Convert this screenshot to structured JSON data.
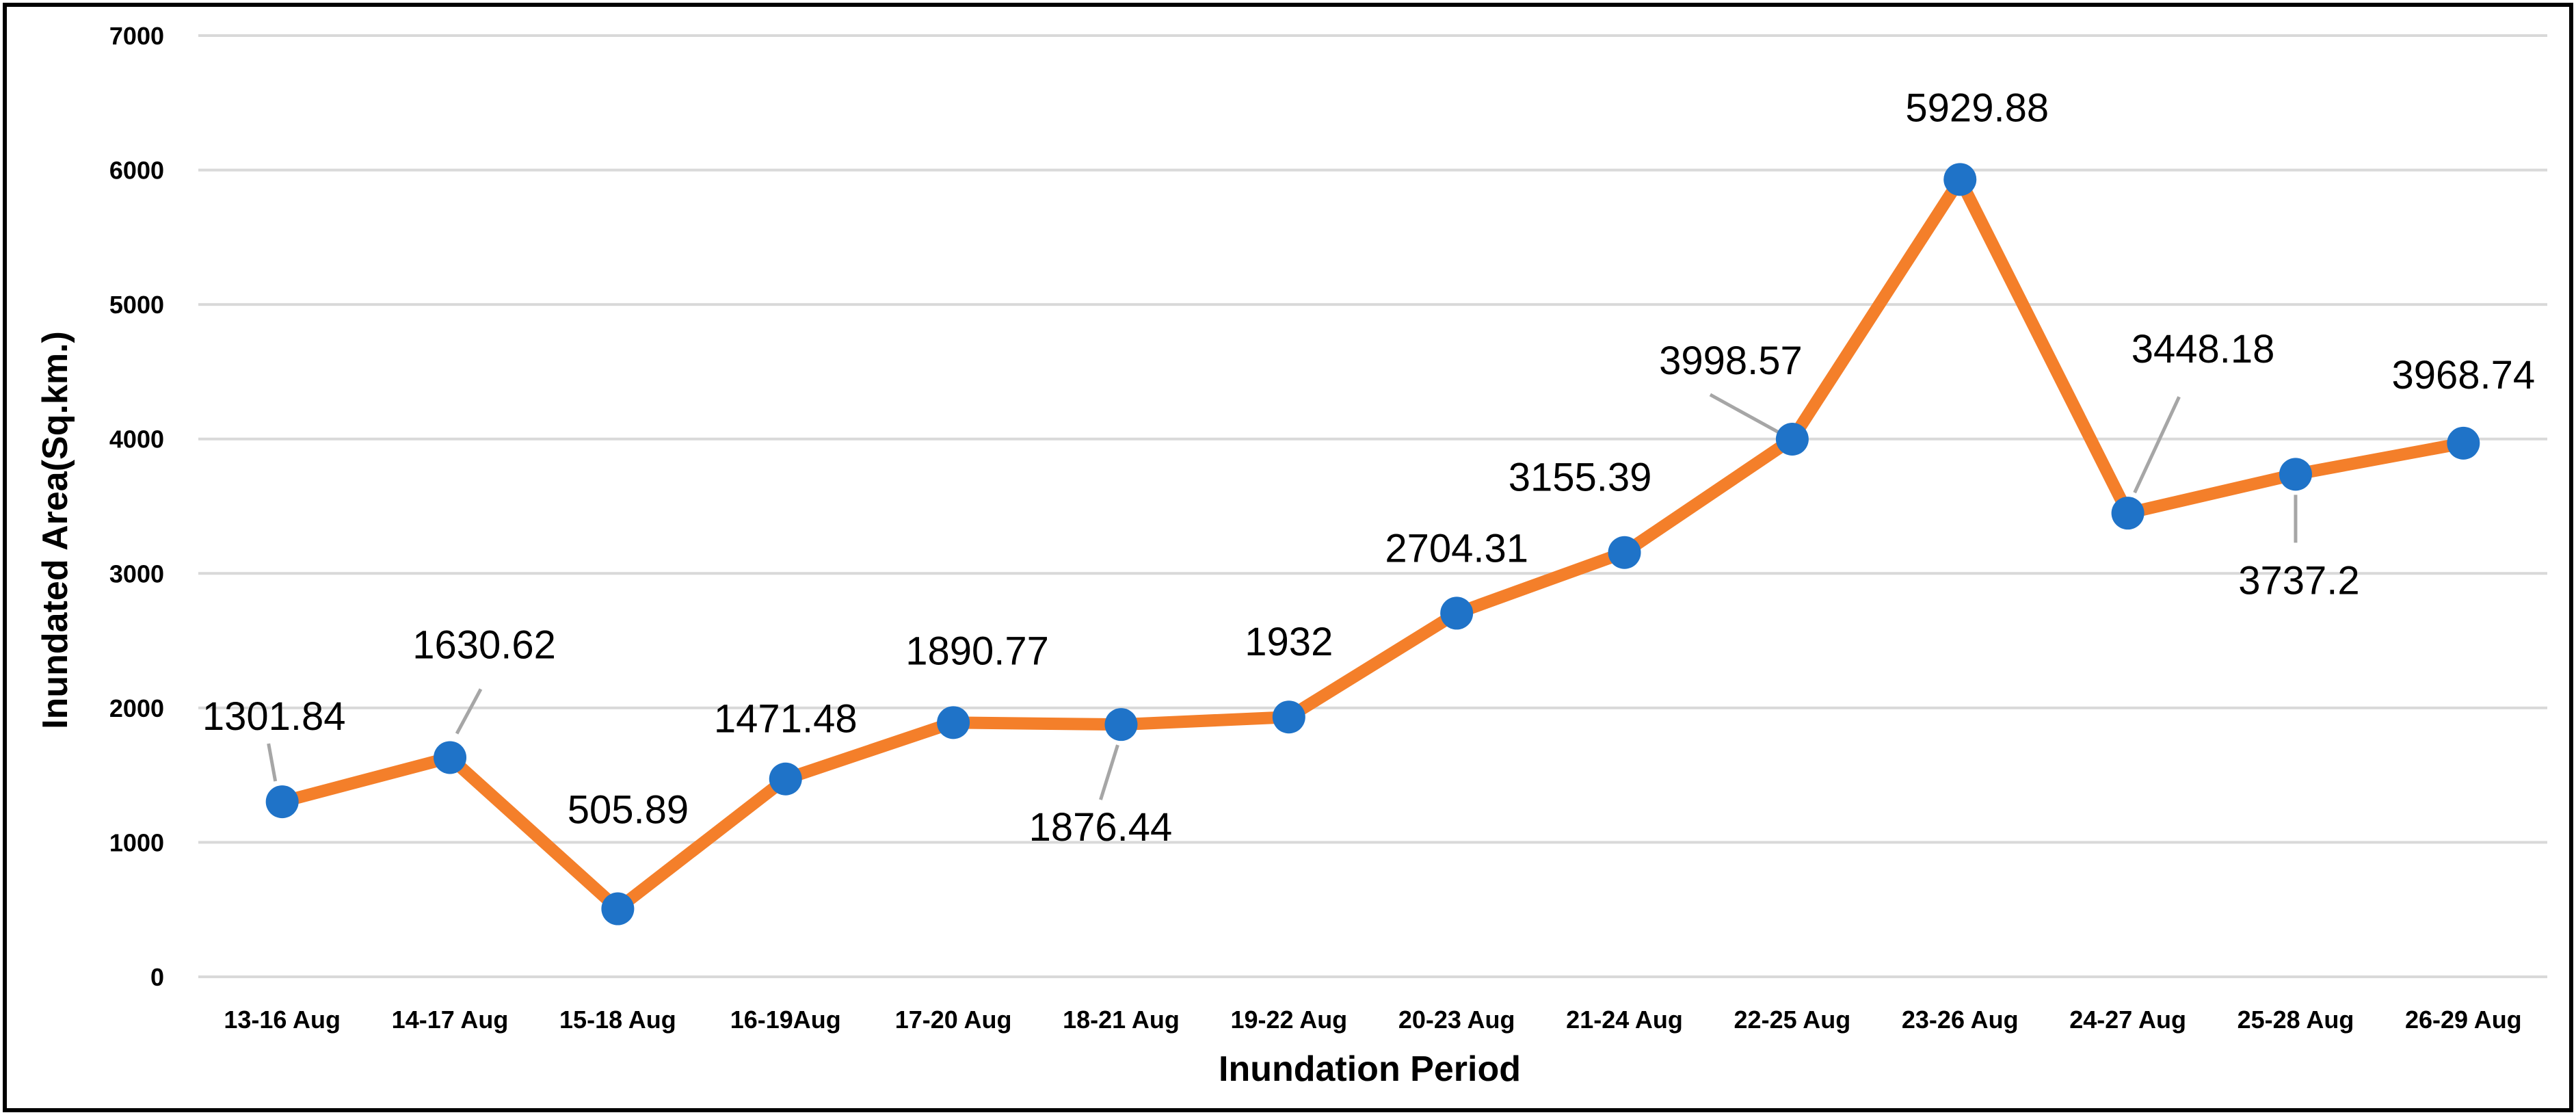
{
  "chart_data": {
    "type": "line",
    "title": "",
    "xlabel": "Inundation Period",
    "ylabel": "Inundated Area(Sq.km.)",
    "ylim": [
      0,
      7000
    ],
    "y_ticks": [
      "0",
      "1000",
      "2000",
      "3000",
      "4000",
      "5000",
      "6000",
      "7000"
    ],
    "grid": true,
    "legend": "none",
    "categories": [
      "13-16 Aug",
      "14-17 Aug",
      "15-18 Aug",
      "16-19Aug",
      "17-20 Aug",
      "18-21 Aug",
      "19-22 Aug",
      "20-23 Aug",
      "21-24 Aug",
      "22-25 Aug",
      "23-26 Aug",
      "24-27 Aug",
      "25-28 Aug",
      "26-29 Aug"
    ],
    "values": [
      1301.84,
      1630.62,
      505.89,
      1471.48,
      1890.77,
      1876.44,
      1932,
      2704.31,
      3155.39,
      3998.57,
      5929.88,
      3448.18,
      3737.2,
      3968.74
    ],
    "data_labels": [
      "1301.84",
      "1630.62",
      "505.89",
      "1471.48",
      "1890.77",
      "1876.44",
      "1932",
      "2704.31",
      "3155.39",
      "3998.57",
      "5929.88",
      "3448.18",
      "3737.2",
      "3968.74"
    ],
    "colors": {
      "line": "#F47F2A",
      "marker": "#1F73C8",
      "grid": "#D9D9D9",
      "leader": "#A6A6A6",
      "border": "#000000"
    }
  }
}
